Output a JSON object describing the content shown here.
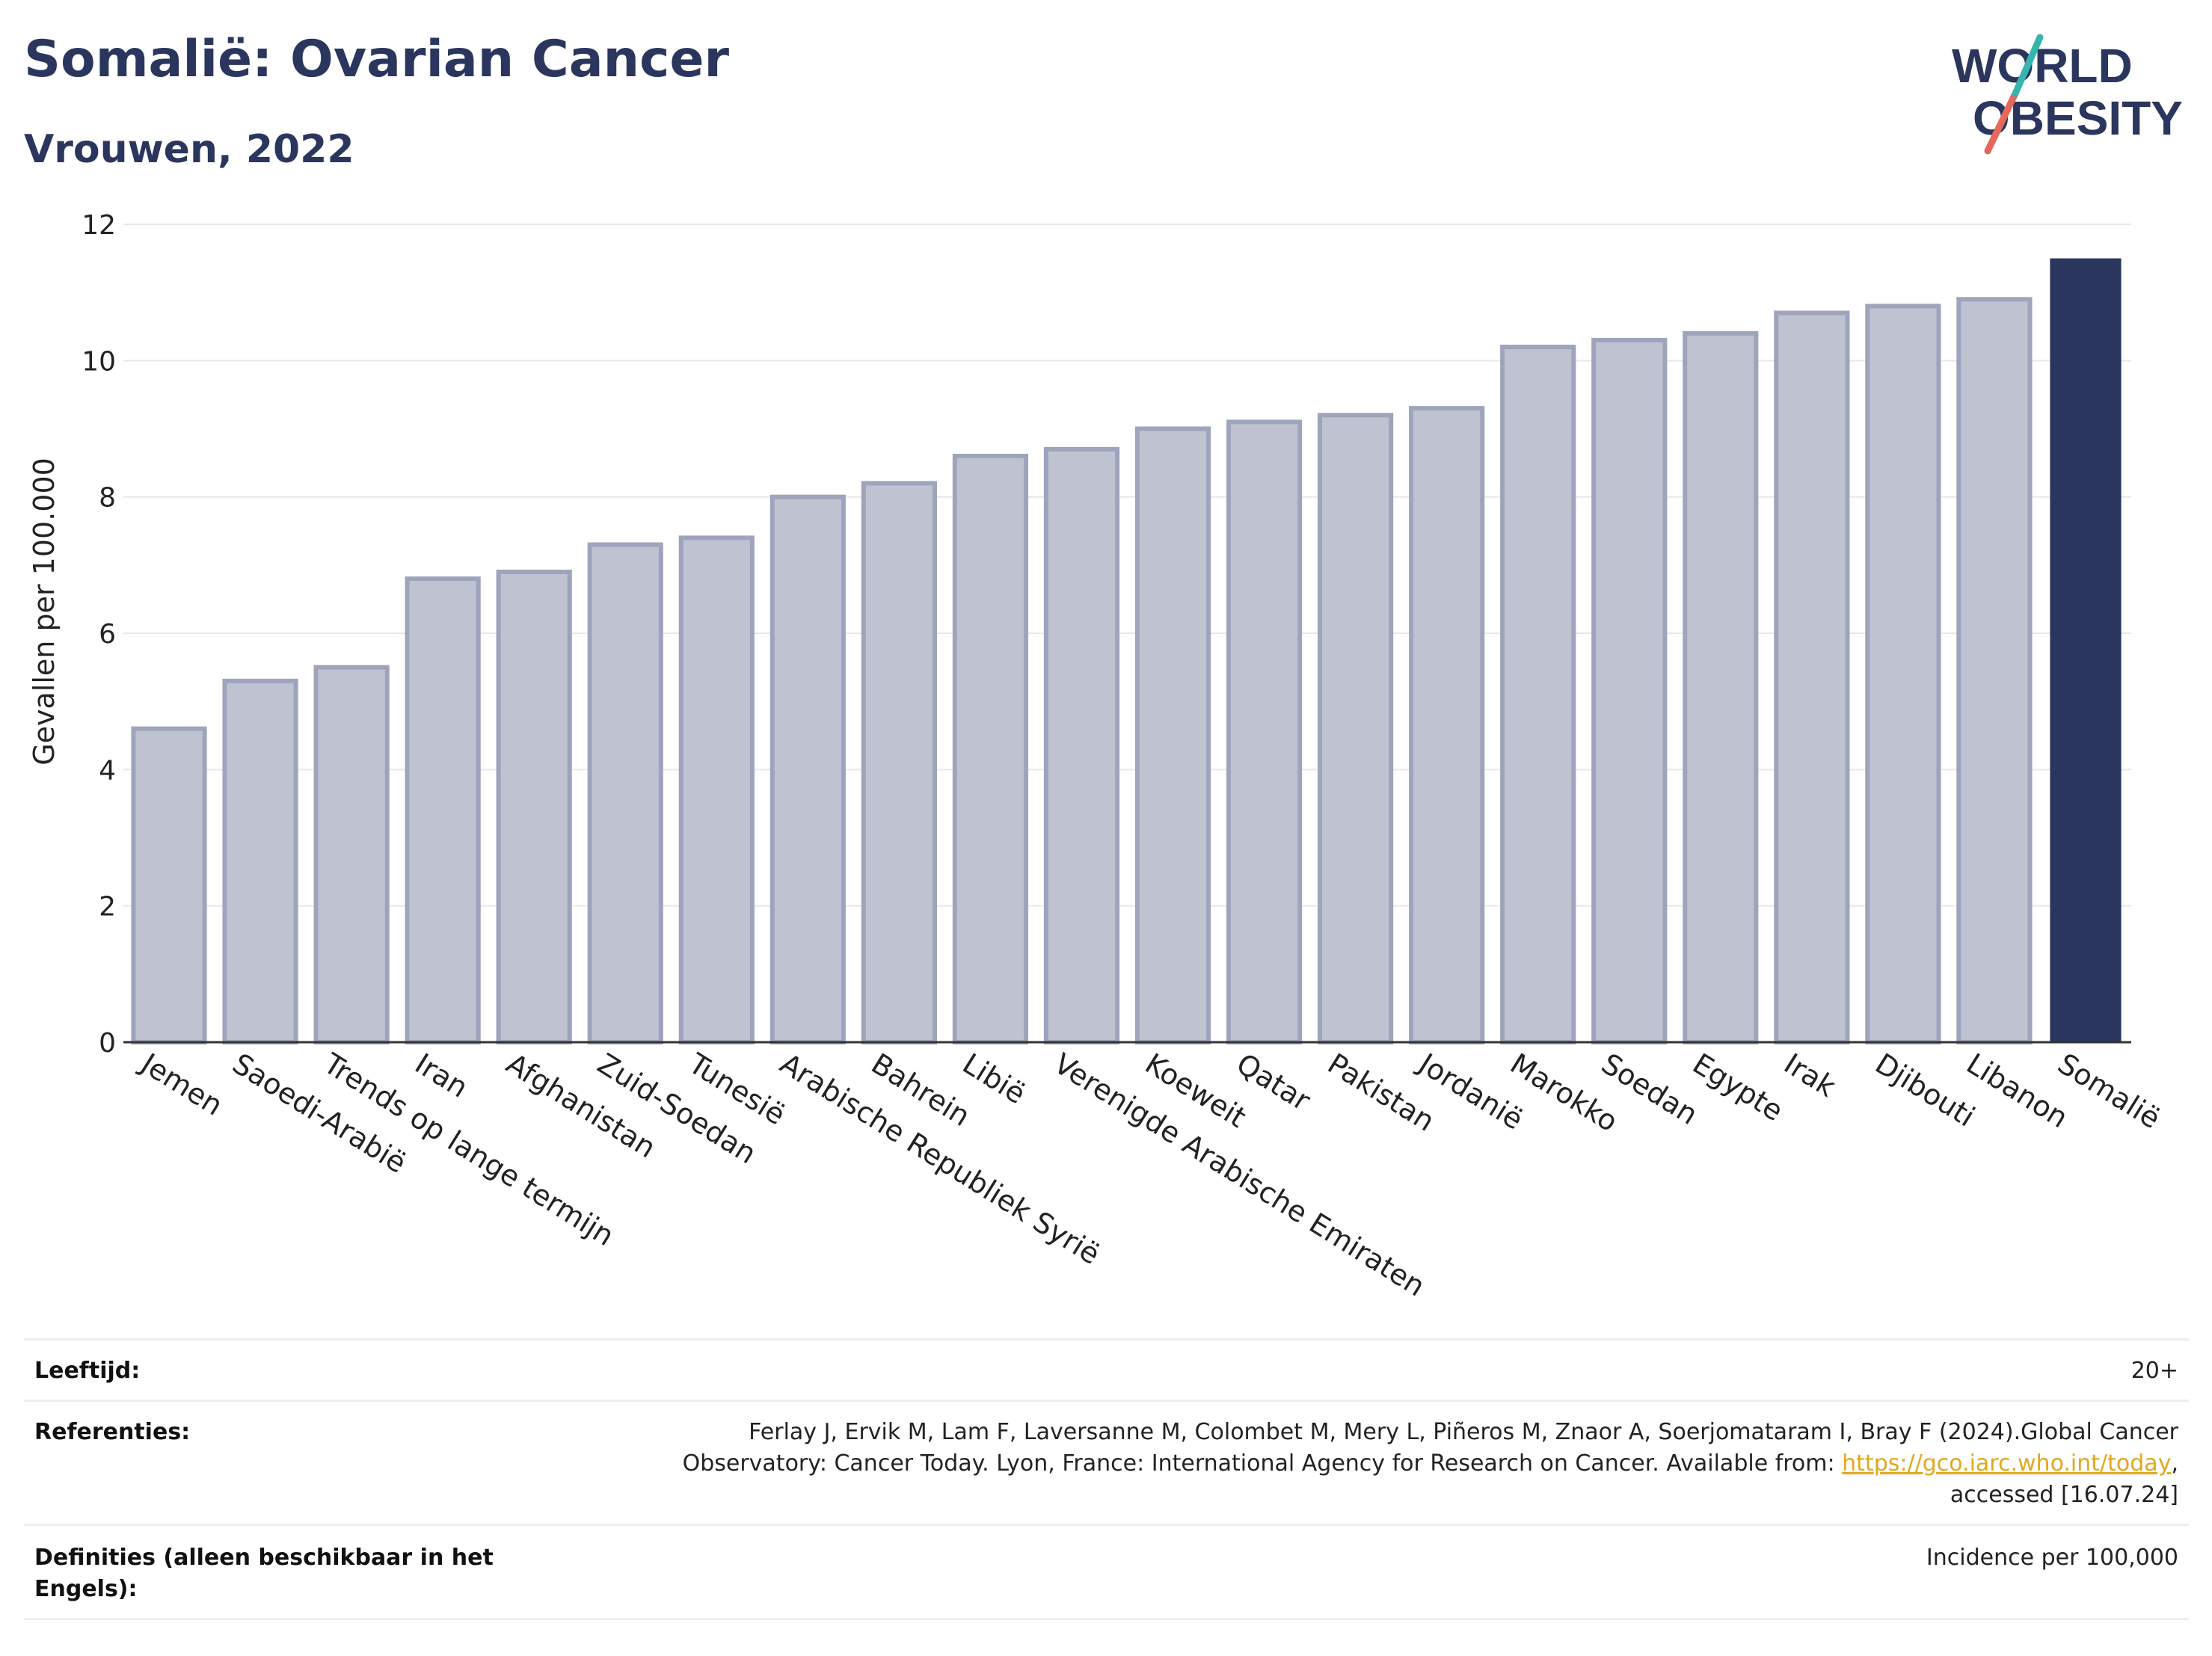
{
  "header": {
    "title": "Somalië: Ovarian Cancer",
    "subtitle": "Vrouwen, 2022"
  },
  "logo": {
    "line1": "WORLD",
    "line2": "OBESITY"
  },
  "chart_data": {
    "type": "bar",
    "ylabel": "Gevallen per 100.000",
    "ylim": [
      0,
      12
    ],
    "yticks": [
      0,
      2,
      4,
      6,
      8,
      10,
      12
    ],
    "grid": true,
    "categories": [
      "Jemen",
      "Saoedi-Arabië",
      "Trends op lange termijn",
      "Iran",
      "Afghanistan",
      "Zuid-Soedan",
      "Tunesië",
      "Arabische Republiek Syrië",
      "Bahrein",
      "Libië",
      "Verenigde Arabische Emiraten",
      "Koeweit",
      "Qatar",
      "Pakistan",
      "Jordanië",
      "Marokko",
      "Soedan",
      "Egypte",
      "Irak",
      "Djibouti",
      "Libanon",
      "Somalië"
    ],
    "values": [
      4.6,
      5.3,
      5.5,
      6.8,
      6.9,
      7.3,
      7.4,
      8.0,
      8.2,
      8.6,
      8.7,
      9.0,
      9.1,
      9.2,
      9.3,
      10.2,
      10.3,
      10.4,
      10.7,
      10.8,
      10.9,
      11.5
    ],
    "highlight": "Somalië",
    "colors": {
      "bar": "#bfc3d1",
      "bar_edge": "#9ea4bb",
      "highlight": "#2b365e",
      "axis": "#333333",
      "grid": "#e6e7ec"
    }
  },
  "meta": {
    "age_label": "Leeftijd:",
    "age_value": "20+",
    "refs_label": "Referenties:",
    "refs_line1": "Ferlay J, Ervik M, Lam F, Laversanne M, Colombet M, Mery L, Piñeros M, Znaor A, Soerjomataram I, Bray F (2024).Global Cancer",
    "refs_line2_pre": "Observatory: Cancer Today. Lyon, France: International Agency for Research on Cancer. Available from: ",
    "refs_link": "https://gco.iarc.who.int/today",
    "refs_line2_post": ",",
    "refs_line3": "accessed [16.07.24]",
    "defs_label": "Definities (alleen beschikbaar in het Engels):",
    "defs_value": "Incidence per 100,000"
  }
}
